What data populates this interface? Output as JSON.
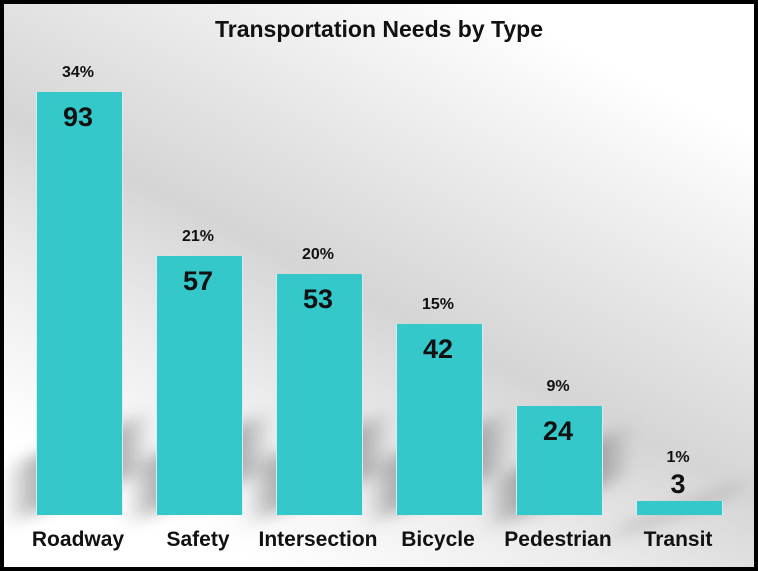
{
  "chart_data": {
    "type": "bar",
    "title": "Transportation Needs by Type",
    "categories": [
      "Roadway",
      "Safety",
      "Intersection",
      "Bicycle",
      "Pedestrian",
      "Transit"
    ],
    "values": [
      93,
      57,
      53,
      42,
      24,
      3
    ],
    "value_labels": [
      "93",
      "57",
      "53",
      "42",
      "24",
      "3"
    ],
    "percent_labels": [
      "34%",
      "21%",
      "20%",
      "15%",
      "9%",
      "1%"
    ],
    "xlabel": "",
    "ylabel": "",
    "ylim": [
      0,
      93
    ],
    "grid": false,
    "legend": false,
    "axes_visible": false,
    "bar_color": "#35C8CB",
    "text_color": "#111111",
    "frame_border_color": "#000000",
    "shadow_color": "#787878",
    "background_style": "diagonal white-to-gray gradient"
  }
}
